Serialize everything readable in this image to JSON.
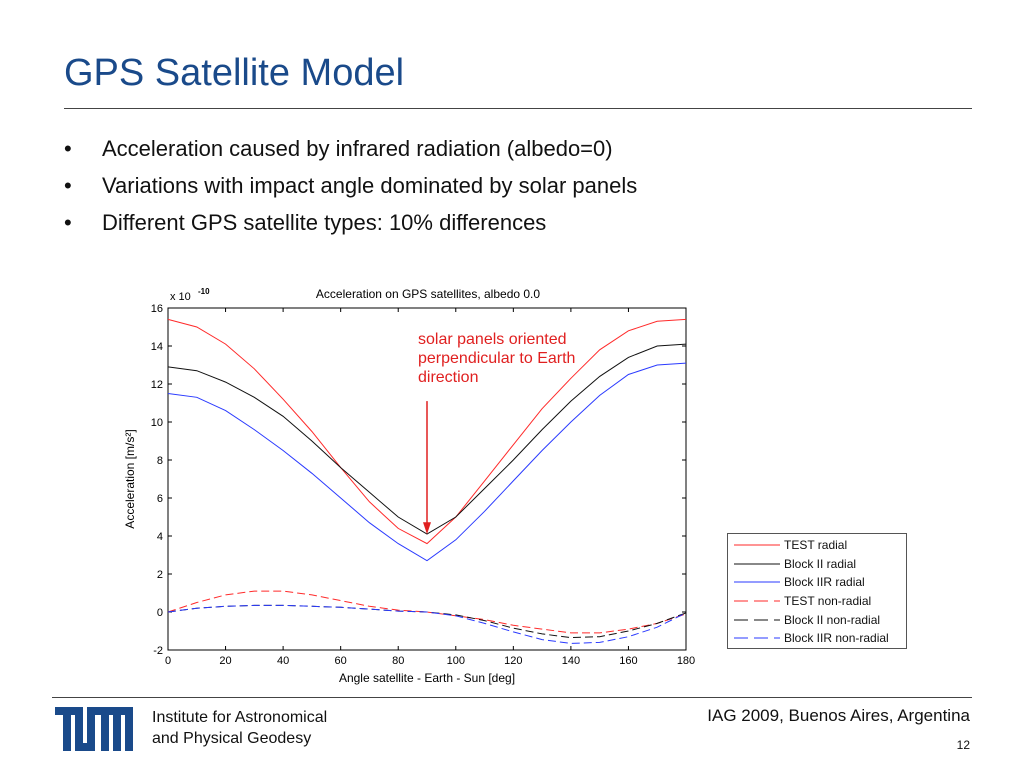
{
  "slide": {
    "title": "GPS Satellite Model",
    "bullets": [
      "Acceleration caused by infrared radiation (albedo=0)",
      "Variations with impact angle dominated by solar panels",
      "Different GPS satellite types: 10% differences"
    ],
    "bullet_symbol": "•"
  },
  "footer": {
    "institute_line1": "Institute for Astronomical",
    "institute_line2": "and Physical Geodesy",
    "conference": "IAG 2009, Buenos Aires, Argentina",
    "page_number": "12",
    "logo_text": "TUM",
    "logo_color": "#1a4a8a"
  },
  "chart_data": {
    "type": "line",
    "title": "Acceleration on GPS satellites, albedo 0.0",
    "xlabel": "Angle satellite - Earth - Sun [deg]",
    "ylabel": "Acceleration [m/s²]",
    "y_multiplier_label": "x 10",
    "y_multiplier_exponent": "-10",
    "xlim": [
      0,
      180
    ],
    "ylim": [
      -2,
      16
    ],
    "xticks": [
      0,
      20,
      40,
      60,
      80,
      100,
      120,
      140,
      160,
      180
    ],
    "yticks": [
      -2,
      0,
      2,
      4,
      6,
      8,
      10,
      12,
      14,
      16
    ],
    "grid": false,
    "legend_position": "bottom-right, outside plot",
    "annotation": {
      "text_lines": [
        "solar panels oriented",
        "perpendicular to Earth",
        "direction"
      ],
      "color": "#e02020",
      "arrow_from": [
        90,
        11.1
      ],
      "arrow_to": [
        90,
        4.2
      ]
    },
    "x": [
      0,
      10,
      20,
      30,
      40,
      50,
      60,
      70,
      80,
      90,
      100,
      110,
      120,
      130,
      140,
      150,
      160,
      170,
      180
    ],
    "series": [
      {
        "name": "TEST radial",
        "color": "#ff2a2a",
        "dash": "solid",
        "values": [
          15.4,
          15.0,
          14.1,
          12.8,
          11.2,
          9.5,
          7.6,
          5.8,
          4.4,
          3.6,
          5.0,
          6.9,
          8.8,
          10.7,
          12.3,
          13.8,
          14.8,
          15.3,
          15.4
        ]
      },
      {
        "name": "Block II radial",
        "color": "#111111",
        "dash": "solid",
        "values": [
          12.9,
          12.7,
          12.1,
          11.3,
          10.3,
          9.0,
          7.6,
          6.3,
          5.0,
          4.1,
          5.0,
          6.5,
          8.0,
          9.6,
          11.1,
          12.4,
          13.4,
          14.0,
          14.1
        ]
      },
      {
        "name": "Block IIR radial",
        "color": "#2a3aff",
        "dash": "solid",
        "values": [
          11.5,
          11.3,
          10.6,
          9.6,
          8.5,
          7.3,
          6.0,
          4.7,
          3.6,
          2.7,
          3.8,
          5.3,
          6.9,
          8.5,
          10.0,
          11.4,
          12.5,
          13.0,
          13.1
        ]
      },
      {
        "name": "TEST non-radial",
        "color": "#ff2a2a",
        "dash": "dashed",
        "values": [
          0.0,
          0.5,
          0.9,
          1.1,
          1.1,
          0.9,
          0.6,
          0.3,
          0.1,
          0.0,
          -0.2,
          -0.4,
          -0.7,
          -0.9,
          -1.1,
          -1.1,
          -0.9,
          -0.6,
          -0.1
        ]
      },
      {
        "name": "Block II non-radial",
        "color": "#111111",
        "dash": "dashed",
        "values": [
          0.0,
          0.2,
          0.3,
          0.35,
          0.35,
          0.3,
          0.25,
          0.15,
          0.05,
          0.0,
          -0.15,
          -0.45,
          -0.85,
          -1.15,
          -1.35,
          -1.3,
          -1.0,
          -0.6,
          -0.05
        ]
      },
      {
        "name": "Block IIR non-radial",
        "color": "#2a3aff",
        "dash": "dashed",
        "values": [
          0.0,
          0.2,
          0.3,
          0.35,
          0.35,
          0.3,
          0.25,
          0.15,
          0.05,
          0.0,
          -0.2,
          -0.6,
          -1.05,
          -1.45,
          -1.65,
          -1.6,
          -1.3,
          -0.8,
          -0.05
        ]
      }
    ]
  }
}
